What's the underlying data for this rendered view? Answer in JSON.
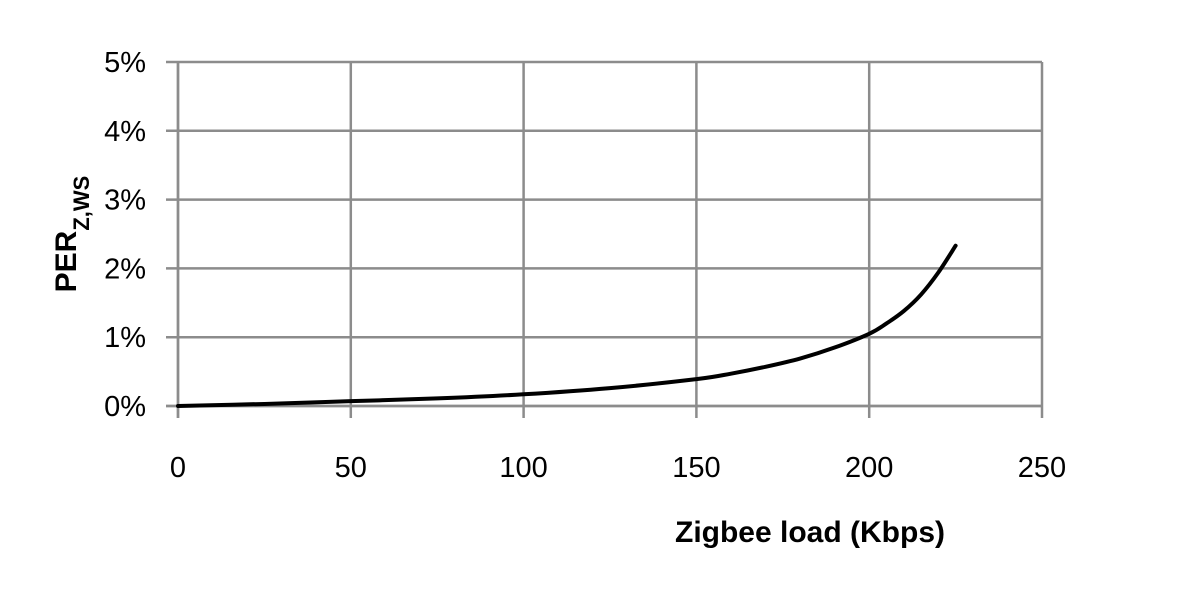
{
  "chart_data": {
    "type": "line",
    "title": "",
    "xlabel": "Zigbee load (Kbps)",
    "ylabel": {
      "main": "PER",
      "subscript": "Z,WS"
    },
    "xlim": [
      0,
      250
    ],
    "ylim": [
      0,
      5
    ],
    "xticks": [
      0,
      50,
      100,
      150,
      200,
      250
    ],
    "yticks": [
      0,
      1,
      2,
      3,
      4,
      5
    ],
    "ytick_labels": [
      "0%",
      "1%",
      "2%",
      "3%",
      "4%",
      "5%"
    ],
    "y_unit": "%",
    "grid": true,
    "legend": "none",
    "series": [
      {
        "color": "#000000",
        "x": [
          0,
          25,
          50,
          75,
          100,
          125,
          150,
          160,
          170,
          180,
          190,
          200,
          205,
          210,
          215,
          220,
          225
        ],
        "y": [
          0.0,
          0.03,
          0.07,
          0.11,
          0.17,
          0.26,
          0.39,
          0.47,
          0.57,
          0.69,
          0.85,
          1.05,
          1.2,
          1.38,
          1.62,
          1.94,
          2.33
        ]
      }
    ]
  }
}
